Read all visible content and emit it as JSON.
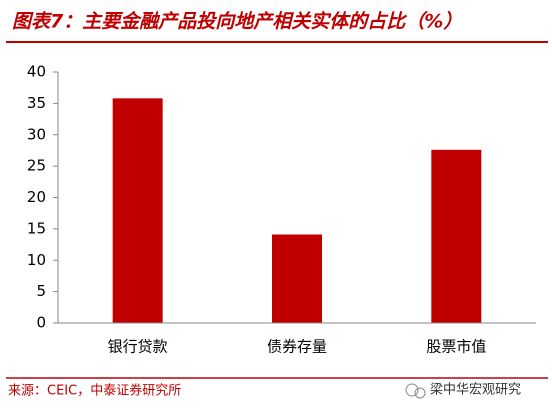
{
  "chart_data": {
    "type": "bar",
    "title": "图表7：主要金融产品投向地产相关实体的占比（%）",
    "categories": [
      "银行贷款",
      "债券存量",
      "股票市值"
    ],
    "values": [
      35.8,
      14.1,
      27.6
    ],
    "color": "#c00000",
    "ylim": [
      0,
      40
    ],
    "yticks": [
      0,
      5,
      10,
      15,
      20,
      25,
      30,
      35,
      40
    ],
    "grid": false,
    "source": "来源：CEIC，中泰证券研究所",
    "watermark": "梁中华宏观研究"
  }
}
